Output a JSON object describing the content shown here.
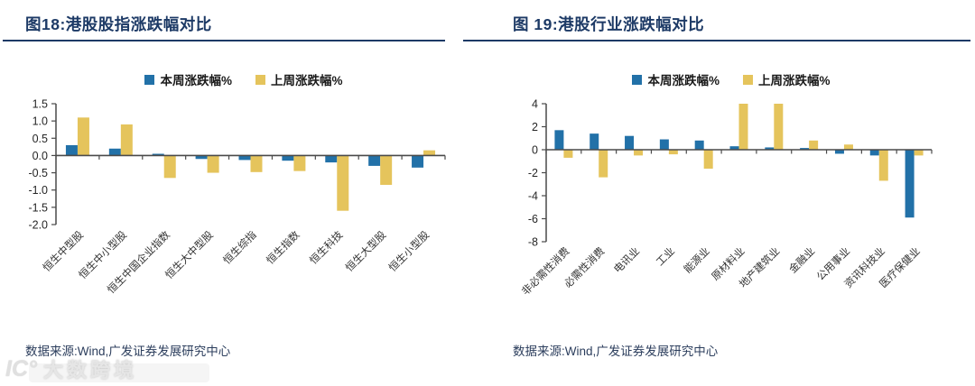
{
  "colors": {
    "accent_navy": "#1d3a66",
    "bar_blue": "#2271A8",
    "bar_yellow": "#E5C45C",
    "axis_line": "#4a4a4a",
    "tick_text": "#262626"
  },
  "watermark": {
    "logo": "IC°",
    "text": "大数跨境"
  },
  "panels": [
    {
      "source_label": "数据来源:Wind,广发证券发展研究中心"
    },
    {
      "source_label": "数据来源:Wind,广发证券发展研究中心"
    }
  ],
  "chart_data": [
    {
      "type": "bar",
      "title": "图18:港股股指涨跌幅对比",
      "categories": [
        "恒生中型股",
        "恒生中小型股",
        "恒生中国企业指数",
        "恒生大中型股",
        "恒生综指",
        "恒生指数",
        "恒生科技",
        "恒生大型股",
        "恒生小型股"
      ],
      "series": [
        {
          "name": "本周涨跌幅%",
          "color": "#2271A8",
          "values": [
            0.3,
            0.2,
            0.05,
            -0.1,
            -0.13,
            -0.15,
            -0.2,
            -0.3,
            -0.35
          ]
        },
        {
          "name": "上周涨跌幅%",
          "color": "#E5C45C",
          "values": [
            1.1,
            0.9,
            -0.65,
            -0.5,
            -0.48,
            -0.45,
            -1.6,
            -0.85,
            0.15
          ]
        }
      ],
      "xlabel": "",
      "ylabel": "",
      "ylim": [
        -2.0,
        1.5
      ],
      "ytick_step": 0.5,
      "ytick_decimals": 1,
      "grid": false,
      "legend_position": "top"
    },
    {
      "type": "bar",
      "title": "图 19:港股行业涨跌幅对比",
      "categories": [
        "非必需性消费",
        "必需性消费",
        "电讯业",
        "工业",
        "能源业",
        "原材料业",
        "地产建筑业",
        "金融业",
        "公用事业",
        "资讯科技业",
        "医疗保健业"
      ],
      "series": [
        {
          "name": "本周涨跌幅%",
          "color": "#2271A8",
          "values": [
            1.7,
            1.4,
            1.2,
            0.9,
            0.8,
            0.3,
            0.2,
            0.15,
            -0.35,
            -0.5,
            -5.9
          ]
        },
        {
          "name": "上周涨跌幅%",
          "color": "#E5C45C",
          "values": [
            -0.7,
            -2.4,
            -0.5,
            -0.4,
            -1.65,
            4.0,
            4.0,
            0.8,
            0.45,
            -2.7,
            -0.5
          ]
        }
      ],
      "xlabel": "",
      "ylabel": "",
      "ylim": [
        -8,
        4
      ],
      "ytick_step": 2,
      "ytick_decimals": 0,
      "grid": false,
      "legend_position": "top"
    }
  ]
}
